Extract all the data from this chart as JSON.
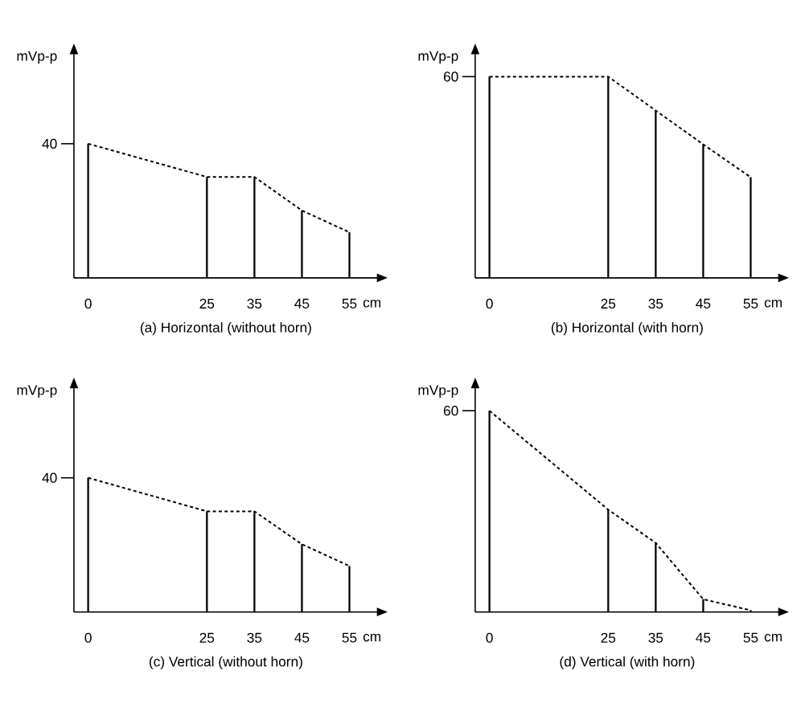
{
  "chart_data": [
    {
      "type": "bar",
      "title": "(a) Horizontal (without horn)",
      "xlabel": "cm",
      "ylabel": "mVp-p",
      "x": [
        0,
        25,
        35,
        45,
        55
      ],
      "xlim": [
        -3,
        61
      ],
      "ylim": [
        0,
        67
      ],
      "xticks": [
        0,
        25,
        35,
        45,
        55
      ],
      "yticks": [
        40
      ],
      "series": [
        {
          "type": "bar",
          "color": "#000000",
          "values": [
            40,
            30.1,
            30.1,
            20.1,
            13.6
          ]
        },
        {
          "type": "line",
          "line_style": "dashed",
          "color": "#000000",
          "values": [
            40,
            30.1,
            30.1,
            20.1,
            13.6
          ]
        }
      ]
    },
    {
      "type": "bar",
      "title": "(b) Horizontal (with horn)",
      "xlabel": "cm",
      "ylabel": "mVp-p",
      "x": [
        0,
        25,
        35,
        45,
        55
      ],
      "xlim": [
        -3,
        61
      ],
      "ylim": [
        0,
        67
      ],
      "xticks": [
        0,
        25,
        35,
        45,
        55
      ],
      "yticks": [
        60
      ],
      "series": [
        {
          "type": "bar",
          "color": "#000000",
          "values": [
            60,
            60,
            49.9,
            39.8,
            30.0
          ]
        },
        {
          "type": "line",
          "line_style": "dashed",
          "color": "#000000",
          "values": [
            60,
            60,
            49.9,
            39.8,
            30.0
          ]
        }
      ]
    },
    {
      "type": "bar",
      "title": "(c) Vertical (without horn)",
      "xlabel": "cm",
      "ylabel": "mVp-p",
      "x": [
        0,
        25,
        35,
        45,
        55
      ],
      "xlim": [
        -3,
        61
      ],
      "ylim": [
        0,
        67
      ],
      "xticks": [
        0,
        25,
        35,
        45,
        55
      ],
      "yticks": [
        40
      ],
      "series": [
        {
          "type": "bar",
          "color": "#000000",
          "values": [
            40,
            30.0,
            30.0,
            20.2,
            13.7
          ]
        },
        {
          "type": "line",
          "line_style": "dashed",
          "color": "#000000",
          "values": [
            40,
            30.0,
            30.0,
            20.2,
            13.7
          ]
        }
      ]
    },
    {
      "type": "bar",
      "title": "(d) Vertical (with horn)",
      "xlabel": "cm",
      "ylabel": "mVp-p",
      "x": [
        0,
        25,
        35,
        45,
        55
      ],
      "xlim": [
        -3,
        61
      ],
      "ylim": [
        0,
        67
      ],
      "xticks": [
        0,
        25,
        35,
        45,
        55
      ],
      "yticks": [
        60
      ],
      "series": [
        {
          "type": "bar",
          "color": "#000000",
          "values": [
            60,
            30.5,
            20.6,
            3.8,
            0.5
          ]
        },
        {
          "type": "line",
          "line_style": "dashed",
          "color": "#000000",
          "values": [
            60,
            30.5,
            20.6,
            3.8,
            0.5
          ]
        }
      ]
    }
  ]
}
